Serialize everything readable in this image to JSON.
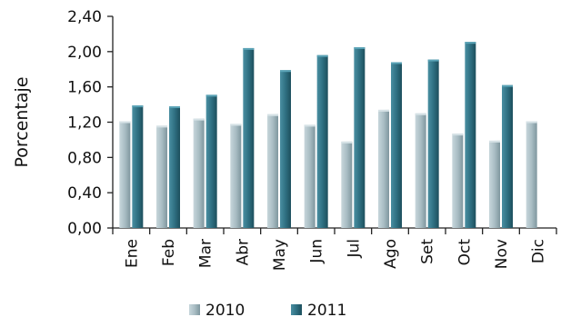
{
  "chart_data": {
    "type": "bar",
    "categories": [
      "Ene",
      "Feb",
      "Mar",
      "Abr",
      "May",
      "Jun",
      "Jul",
      "Ago",
      "Set",
      "Oct",
      "Nov",
      "Dic"
    ],
    "series": [
      {
        "name": "2010",
        "values": [
          1.21,
          1.16,
          1.24,
          1.18,
          1.29,
          1.17,
          0.98,
          1.34,
          1.3,
          1.07,
          0.99,
          1.21
        ]
      },
      {
        "name": "2011",
        "values": [
          1.39,
          1.38,
          1.51,
          2.04,
          1.79,
          1.96,
          2.05,
          1.88,
          1.91,
          2.11,
          1.62,
          null
        ]
      }
    ],
    "title": "",
    "xlabel": "",
    "ylabel": "Porcentaje",
    "ylim": [
      0,
      2.4
    ],
    "yticks": [
      "0,00",
      "0,40",
      "0,80",
      "1,20",
      "1,60",
      "2,00",
      "2,40"
    ],
    "grid": false,
    "legend_position": "bottom",
    "colors": {
      "2010": "#9fb5bd",
      "2011": "#2f7082"
    }
  }
}
